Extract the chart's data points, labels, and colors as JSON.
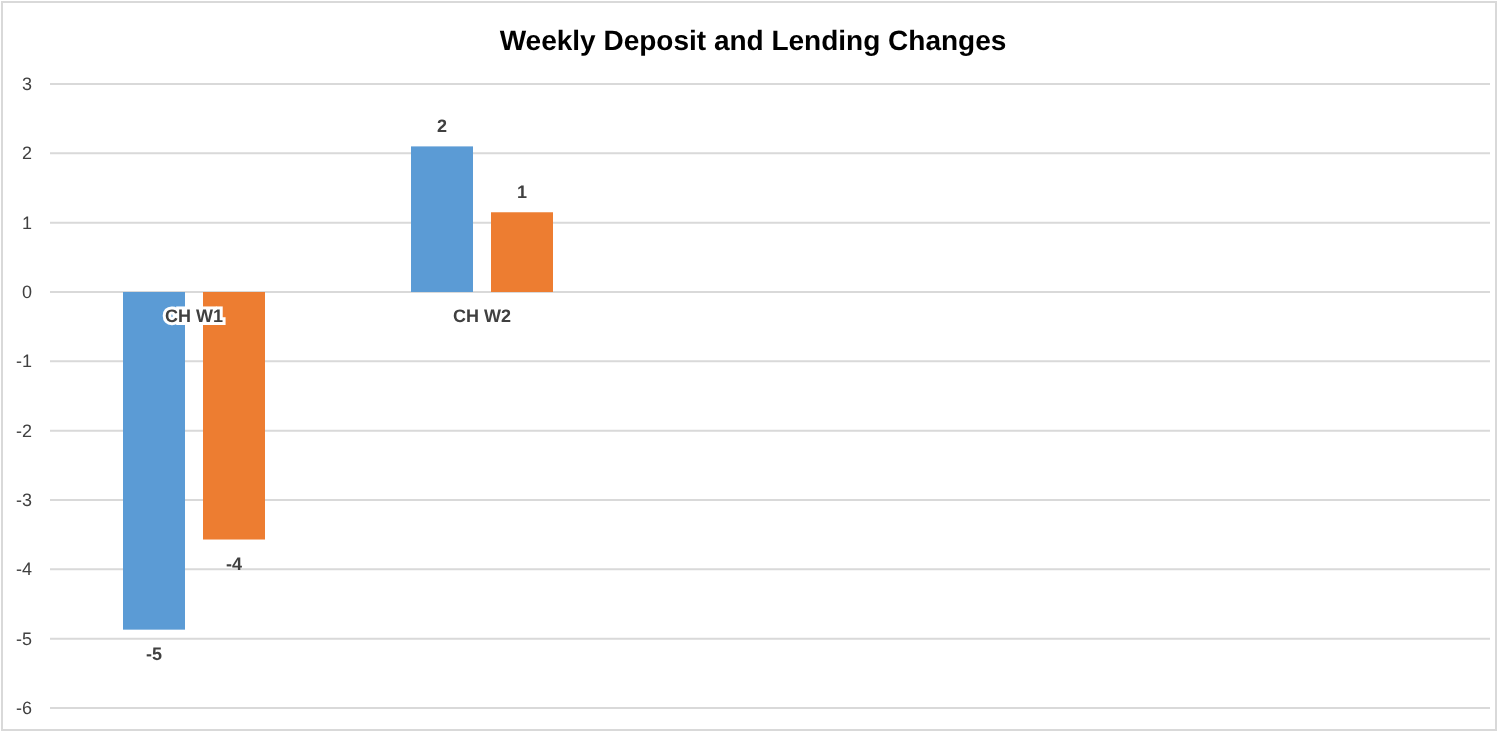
{
  "chart_data": {
    "type": "bar",
    "title": "Weekly Deposit and Lending Changes",
    "categories": [
      "CH W1",
      "CH W2",
      null,
      null,
      null
    ],
    "series": [
      {
        "color": "#5b9bd5",
        "values": [
          -4.87,
          2.1,
          null,
          null,
          null
        ],
        "value_labels": [
          "-5",
          "2",
          null,
          null,
          null
        ]
      },
      {
        "color": "#ed7d31",
        "values": [
          -3.57,
          1.15,
          null,
          null,
          null
        ],
        "value_labels": [
          "-4",
          "1",
          null,
          null,
          null
        ]
      }
    ],
    "ylim": [
      -6,
      3
    ],
    "yticks": [
      -6,
      -5,
      -4,
      -3,
      -2,
      -1,
      0,
      1,
      2,
      3
    ],
    "grid": "y"
  }
}
